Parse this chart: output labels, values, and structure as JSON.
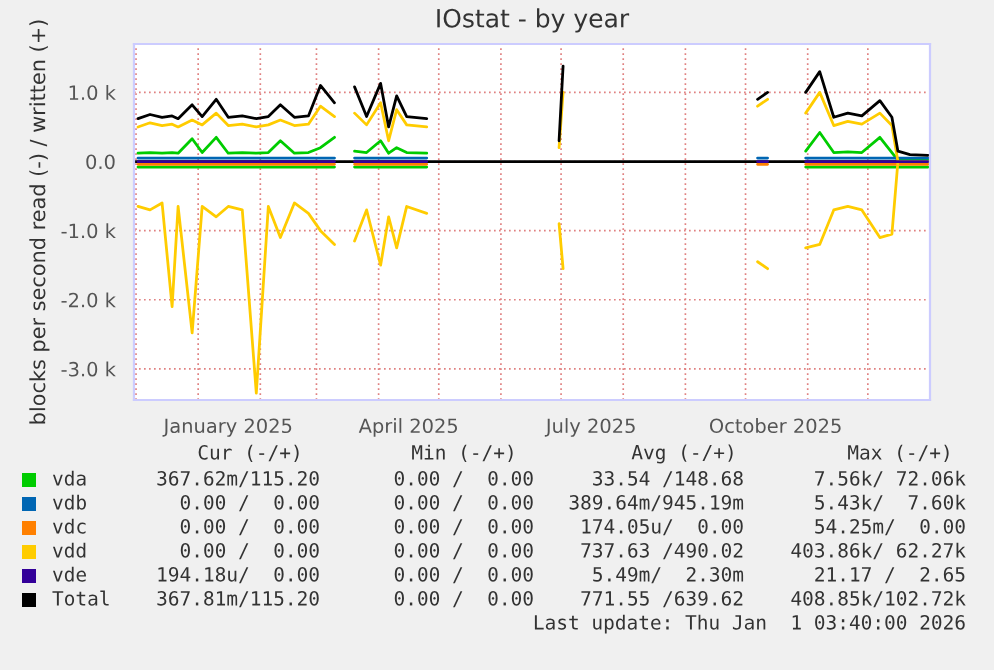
{
  "chart_data": {
    "type": "line",
    "title": "IOstat - by year",
    "ylabel": "blocks per second read (-) / written (+)",
    "x": [
      "2024-12-02",
      "2024-12-08",
      "2024-12-14",
      "2024-12-19",
      "2024-12-22",
      "2024-12-29",
      "2025-01-03",
      "2025-01-10",
      "2025-01-16",
      "2025-01-23",
      "2025-01-30",
      "2025-02-05",
      "2025-02-11",
      "2025-02-18",
      "2025-02-25",
      "2025-03-03",
      "2025-03-10",
      "2025-03-15",
      "2025-03-20",
      "2025-03-26",
      "2025-04-02",
      "2025-04-06",
      "2025-04-10",
      "2025-04-15",
      "2025-04-25",
      "2025-04-26",
      "2025-06-30",
      "2025-07-02",
      "2025-07-03",
      "2025-10-07",
      "2025-10-12",
      "2025-10-13",
      "2025-10-31",
      "2025-11-07",
      "2025-11-14",
      "2025-11-21",
      "2025-11-28",
      "2025-12-07",
      "2025-12-13",
      "2025-12-16",
      "2025-12-22",
      "2025-12-31"
    ],
    "series": [
      {
        "color": "#00cc00",
        "values": [
          -80,
          -80,
          -80,
          -80,
          -80,
          -80,
          -80,
          -80,
          -80,
          -80,
          -80,
          -80,
          -80,
          -80,
          -80,
          -80,
          -80,
          null,
          -80,
          -80,
          -80,
          -80,
          -80,
          -80,
          -80,
          null,
          null,
          null,
          null,
          null,
          null,
          null,
          -80,
          -80,
          -80,
          -80,
          -80,
          -80,
          -80,
          -80,
          -80,
          -80
        ]
      },
      {
        "name": "vda",
        "color": "#00cc00",
        "values": [
          120,
          130,
          120,
          130,
          120,
          330,
          130,
          350,
          120,
          130,
          120,
          130,
          300,
          120,
          130,
          200,
          350,
          null,
          150,
          130,
          300,
          120,
          200,
          130,
          120,
          null,
          null,
          null,
          null,
          null,
          null,
          null,
          150,
          420,
          130,
          140,
          130,
          350,
          130,
          20,
          20,
          20
        ]
      },
      {
        "name": "vdb",
        "color": "#0066b3",
        "values": [
          50,
          50,
          50,
          50,
          50,
          50,
          50,
          50,
          50,
          50,
          50,
          50,
          50,
          50,
          50,
          50,
          50,
          null,
          50,
          50,
          50,
          50,
          50,
          50,
          50,
          null,
          null,
          null,
          null,
          50,
          50,
          null,
          50,
          50,
          50,
          50,
          50,
          50,
          50,
          50,
          50,
          50
        ]
      },
      {
        "name": "vdc",
        "color": "#ff8000",
        "values": [
          -40,
          -40,
          -40,
          -40,
          -40,
          -40,
          -40,
          -40,
          -40,
          -40,
          -40,
          -40,
          -40,
          -40,
          -40,
          -40,
          -40,
          null,
          -40,
          -40,
          -40,
          -40,
          -40,
          -40,
          -40,
          null,
          null,
          null,
          null,
          -40,
          -40,
          null,
          -40,
          -40,
          -40,
          -40,
          -40,
          -40,
          -40,
          -40,
          -40,
          -40
        ]
      },
      {
        "color": "#ffcc00",
        "values": [
          -650,
          -700,
          -600,
          -2100,
          -650,
          -2480,
          -650,
          -800,
          -650,
          -700,
          -3350,
          -650,
          -1100,
          -600,
          -750,
          -1000,
          -1200,
          null,
          -1150,
          -700,
          -1500,
          -800,
          -1250,
          -650,
          -750,
          null,
          -900,
          -1550,
          null,
          -1450,
          -1550,
          null,
          -1250,
          -1200,
          -700,
          -650,
          -700,
          -1100,
          -1050,
          0,
          0,
          0
        ]
      },
      {
        "name": "vdd",
        "color": "#ffcc00",
        "values": [
          500,
          560,
          520,
          540,
          500,
          600,
          530,
          700,
          520,
          540,
          500,
          530,
          600,
          520,
          540,
          800,
          650,
          null,
          700,
          530,
          850,
          300,
          750,
          530,
          500,
          null,
          200,
          1000,
          null,
          800,
          900,
          null,
          700,
          1000,
          520,
          580,
          540,
          700,
          520,
          0,
          0,
          0
        ]
      },
      {
        "name": "vde",
        "color": "#330099",
        "values": [
          0,
          0,
          0,
          0,
          0,
          0,
          0,
          0,
          0,
          0,
          0,
          0,
          0,
          0,
          0,
          0,
          0,
          null,
          0,
          0,
          0,
          0,
          0,
          0,
          0,
          null,
          null,
          null,
          null,
          0,
          0,
          null,
          0,
          0,
          0,
          0,
          0,
          0,
          0,
          0,
          0,
          0
        ]
      },
      {
        "name": "Total",
        "color": "#000000",
        "values": [
          620,
          680,
          640,
          660,
          620,
          820,
          650,
          900,
          640,
          660,
          620,
          650,
          820,
          640,
          660,
          1100,
          850,
          null,
          1080,
          650,
          1130,
          500,
          950,
          650,
          620,
          null,
          300,
          1380,
          null,
          900,
          1000,
          null,
          1000,
          1300,
          640,
          700,
          660,
          880,
          640,
          150,
          100,
          90
        ]
      }
    ],
    "xlim": [
      "2024-11-30",
      "2026-01-01"
    ],
    "xticks": [
      {
        "value": "2024-12-01",
        "label": null
      },
      {
        "value": "2025-01-01",
        "label": null
      },
      {
        "value": "2025-01-16",
        "label": "January 2025"
      },
      {
        "value": "2025-02-01",
        "label": null
      },
      {
        "value": "2025-03-01",
        "label": null
      },
      {
        "value": "2025-04-01",
        "label": null
      },
      {
        "value": "2025-04-16",
        "label": "April 2025"
      },
      {
        "value": "2025-05-01",
        "label": null
      },
      {
        "value": "2025-06-01",
        "label": null
      },
      {
        "value": "2025-07-01",
        "label": null
      },
      {
        "value": "2025-07-16",
        "label": "July 2025"
      },
      {
        "value": "2025-08-01",
        "label": null
      },
      {
        "value": "2025-09-01",
        "label": null
      },
      {
        "value": "2025-10-01",
        "label": null
      },
      {
        "value": "2025-10-16",
        "label": "October 2025"
      },
      {
        "value": "2025-11-01",
        "label": null
      },
      {
        "value": "2025-12-01",
        "label": null
      }
    ],
    "ylim": [
      -3450,
      1700
    ],
    "yticks": [
      {
        "value": 1000,
        "label": "1.0 k"
      },
      {
        "value": 0,
        "label": "0.0"
      },
      {
        "value": -1000,
        "label": "-1.0 k"
      },
      {
        "value": -2000,
        "label": "-2.0 k"
      },
      {
        "value": -3000,
        "label": "-3.0 k"
      }
    ],
    "grid": true,
    "legend": "bottom",
    "marker": "none",
    "line_style": "solid",
    "annotations": [
      "Cur (-/+)",
      "Min (-/+)",
      "Avg (-/+)",
      "Max (-/+)",
      "367.62m/115.20",
      "0.00 /  0.00",
      "33.54 /148.68",
      "7.56k/ 72.06k",
      "0.00 /  0.00",
      "0.00 /  0.00",
      "389.64m/945.19m",
      "5.43k/  7.60k",
      "0.00 /  0.00",
      "0.00 /  0.00",
      "174.05u/  0.00",
      "54.25m/  0.00",
      "0.00 /  0.00",
      "0.00 /  0.00",
      "737.63 /490.02",
      "403.86k/ 62.27k",
      "194.18u/  0.00",
      "0.00 /  0.00",
      "5.49m/  2.30m",
      "21.17 /  2.65",
      "367.81m/115.20",
      "0.00 /  0.00",
      "771.55 /639.62",
      "408.85k/102.72k",
      "Last update: Thu Jan  1 03:40:00 2026"
    ]
  }
}
